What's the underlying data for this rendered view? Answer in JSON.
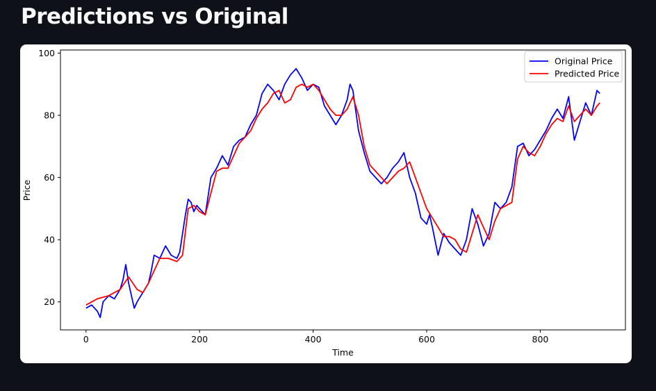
{
  "page": {
    "title": "Predictions vs Original"
  },
  "colors": {
    "background": "#0e1117",
    "card": "#ffffff",
    "original": "#0000ff",
    "predicted": "#ff0000"
  },
  "chart_data": {
    "type": "line",
    "title": "",
    "xlabel": "Time",
    "ylabel": "Price",
    "xlim": [
      -45,
      950
    ],
    "ylim": [
      11,
      101
    ],
    "xticks": [
      0,
      200,
      400,
      600,
      800
    ],
    "yticks": [
      20,
      40,
      60,
      80,
      100
    ],
    "grid": false,
    "legend": "top-right",
    "series": [
      {
        "name": "Original Price",
        "color": "#0000ff",
        "points": [
          [
            0,
            18
          ],
          [
            10,
            19
          ],
          [
            20,
            17
          ],
          [
            25,
            15
          ],
          [
            30,
            20
          ],
          [
            40,
            22
          ],
          [
            50,
            21
          ],
          [
            60,
            24
          ],
          [
            65,
            27
          ],
          [
            70,
            32
          ],
          [
            75,
            26
          ],
          [
            80,
            22
          ],
          [
            85,
            18
          ],
          [
            90,
            20
          ],
          [
            100,
            23
          ],
          [
            110,
            26
          ],
          [
            115,
            30
          ],
          [
            120,
            35
          ],
          [
            130,
            34
          ],
          [
            140,
            38
          ],
          [
            150,
            35
          ],
          [
            160,
            34
          ],
          [
            165,
            36
          ],
          [
            170,
            42
          ],
          [
            175,
            48
          ],
          [
            180,
            53
          ],
          [
            185,
            52
          ],
          [
            190,
            49
          ],
          [
            195,
            51
          ],
          [
            200,
            50
          ],
          [
            210,
            48
          ],
          [
            220,
            60
          ],
          [
            230,
            63
          ],
          [
            240,
            67
          ],
          [
            250,
            64
          ],
          [
            260,
            70
          ],
          [
            270,
            72
          ],
          [
            280,
            73
          ],
          [
            290,
            77
          ],
          [
            300,
            80
          ],
          [
            310,
            87
          ],
          [
            320,
            90
          ],
          [
            330,
            88
          ],
          [
            340,
            85
          ],
          [
            350,
            90
          ],
          [
            360,
            93
          ],
          [
            370,
            95
          ],
          [
            380,
            92
          ],
          [
            390,
            88
          ],
          [
            400,
            90
          ],
          [
            410,
            89
          ],
          [
            420,
            83
          ],
          [
            430,
            80
          ],
          [
            440,
            77
          ],
          [
            450,
            80
          ],
          [
            460,
            85
          ],
          [
            465,
            90
          ],
          [
            470,
            88
          ],
          [
            480,
            75
          ],
          [
            490,
            68
          ],
          [
            500,
            62
          ],
          [
            510,
            60
          ],
          [
            520,
            58
          ],
          [
            530,
            60
          ],
          [
            540,
            63
          ],
          [
            550,
            65
          ],
          [
            560,
            68
          ],
          [
            570,
            60
          ],
          [
            580,
            55
          ],
          [
            590,
            47
          ],
          [
            600,
            45
          ],
          [
            605,
            48
          ],
          [
            610,
            44
          ],
          [
            620,
            35
          ],
          [
            630,
            42
          ],
          [
            640,
            39
          ],
          [
            650,
            37
          ],
          [
            660,
            35
          ],
          [
            670,
            40
          ],
          [
            680,
            50
          ],
          [
            690,
            45
          ],
          [
            700,
            38
          ],
          [
            710,
            42
          ],
          [
            720,
            52
          ],
          [
            730,
            50
          ],
          [
            740,
            52
          ],
          [
            750,
            57
          ],
          [
            760,
            70
          ],
          [
            770,
            71
          ],
          [
            780,
            67
          ],
          [
            790,
            69
          ],
          [
            800,
            72
          ],
          [
            810,
            75
          ],
          [
            820,
            79
          ],
          [
            830,
            82
          ],
          [
            840,
            79
          ],
          [
            850,
            86
          ],
          [
            860,
            72
          ],
          [
            870,
            78
          ],
          [
            880,
            84
          ],
          [
            890,
            80
          ],
          [
            900,
            88
          ],
          [
            905,
            87
          ]
        ]
      },
      {
        "name": "Predicted Price",
        "color": "#ff0000",
        "points": [
          [
            0,
            19
          ],
          [
            20,
            21
          ],
          [
            40,
            22
          ],
          [
            60,
            24
          ],
          [
            75,
            28
          ],
          [
            90,
            24
          ],
          [
            100,
            23
          ],
          [
            110,
            26
          ],
          [
            120,
            30
          ],
          [
            130,
            34
          ],
          [
            145,
            34
          ],
          [
            160,
            33
          ],
          [
            170,
            35
          ],
          [
            180,
            50
          ],
          [
            190,
            51
          ],
          [
            200,
            49
          ],
          [
            210,
            48
          ],
          [
            220,
            55
          ],
          [
            230,
            62
          ],
          [
            240,
            63
          ],
          [
            250,
            63
          ],
          [
            260,
            67
          ],
          [
            270,
            71
          ],
          [
            280,
            73
          ],
          [
            290,
            75
          ],
          [
            300,
            79
          ],
          [
            310,
            82
          ],
          [
            320,
            84
          ],
          [
            330,
            87
          ],
          [
            340,
            88
          ],
          [
            350,
            84
          ],
          [
            360,
            85
          ],
          [
            370,
            89
          ],
          [
            380,
            90
          ],
          [
            390,
            89
          ],
          [
            400,
            90
          ],
          [
            410,
            88
          ],
          [
            420,
            85
          ],
          [
            430,
            82
          ],
          [
            440,
            80
          ],
          [
            450,
            80
          ],
          [
            460,
            82
          ],
          [
            470,
            86
          ],
          [
            480,
            80
          ],
          [
            490,
            70
          ],
          [
            500,
            64
          ],
          [
            510,
            62
          ],
          [
            520,
            60
          ],
          [
            530,
            58
          ],
          [
            540,
            60
          ],
          [
            550,
            62
          ],
          [
            560,
            63
          ],
          [
            570,
            65
          ],
          [
            580,
            60
          ],
          [
            590,
            55
          ],
          [
            600,
            50
          ],
          [
            610,
            47
          ],
          [
            620,
            44
          ],
          [
            630,
            41
          ],
          [
            640,
            41
          ],
          [
            650,
            40
          ],
          [
            660,
            37
          ],
          [
            670,
            36
          ],
          [
            680,
            42
          ],
          [
            690,
            48
          ],
          [
            700,
            44
          ],
          [
            710,
            40
          ],
          [
            720,
            46
          ],
          [
            730,
            50
          ],
          [
            740,
            51
          ],
          [
            750,
            52
          ],
          [
            760,
            66
          ],
          [
            770,
            70
          ],
          [
            780,
            68
          ],
          [
            790,
            67
          ],
          [
            800,
            70
          ],
          [
            810,
            74
          ],
          [
            820,
            77
          ],
          [
            830,
            79
          ],
          [
            840,
            78
          ],
          [
            850,
            83
          ],
          [
            860,
            78
          ],
          [
            870,
            80
          ],
          [
            880,
            82
          ],
          [
            890,
            80
          ],
          [
            900,
            83
          ],
          [
            905,
            84
          ]
        ]
      }
    ]
  }
}
